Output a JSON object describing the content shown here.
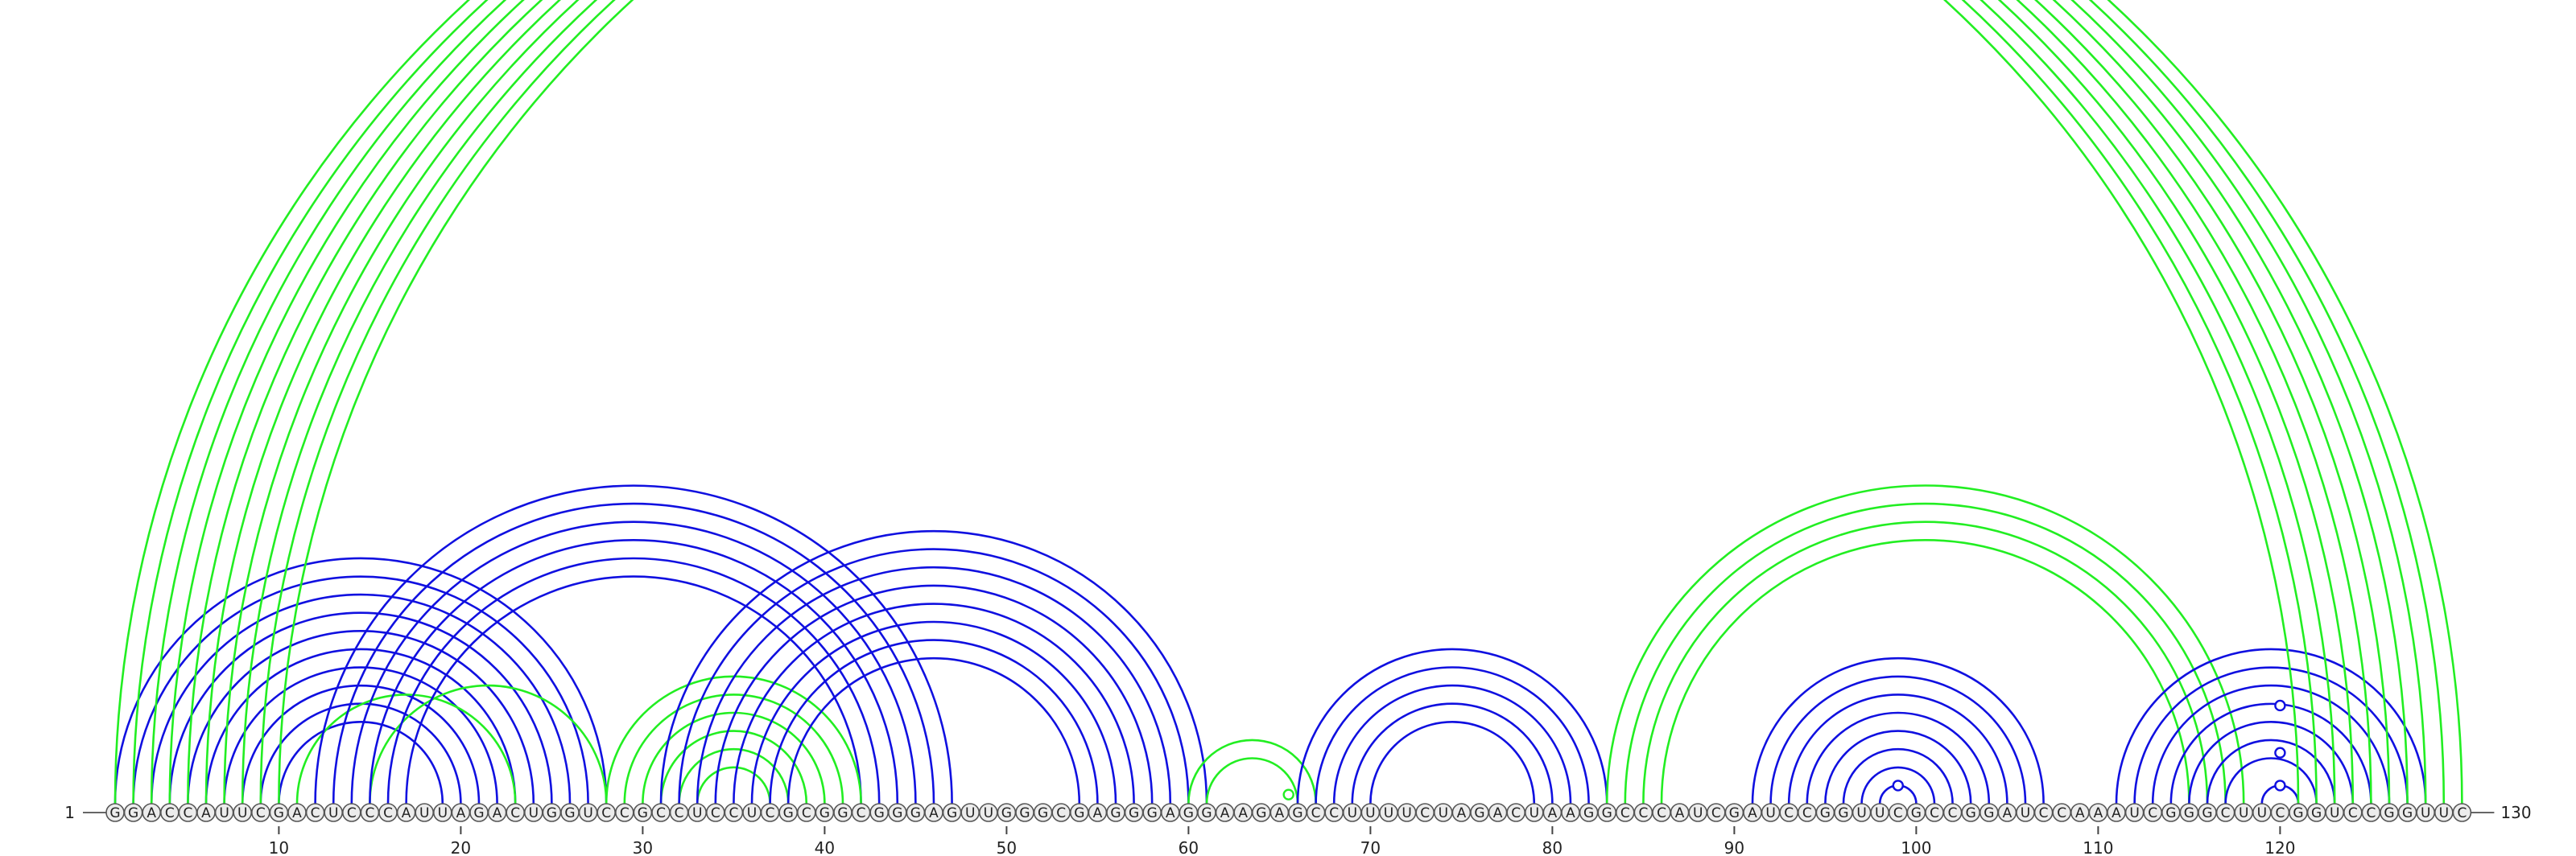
{
  "sequence": "GGACCAUUCGACUCCCAUUAGACUGGUCCGCCUCCUCGCGGCGGGAGUUGGGCGAGGGAGGAAGAGCCUUUUCUAGACUAAGGCCCAUCGAUCCGGUUCGCCGGAUCCAAAUCGGGCUUCGGUCCGGUUC",
  "start_label": "1",
  "end_label": "130",
  "ticks": [
    10,
    20,
    30,
    40,
    50,
    60,
    70,
    80,
    90,
    100,
    110,
    120
  ],
  "colors": {
    "blue": "#1010e0",
    "green": "#22ee22"
  },
  "arc_groups": [
    {
      "color": "blue",
      "pairs": [
        [
          1,
          28
        ],
        [
          2,
          27
        ],
        [
          3,
          26
        ],
        [
          4,
          25
        ],
        [
          5,
          24
        ],
        [
          6,
          23
        ],
        [
          7,
          22
        ],
        [
          8,
          21
        ],
        [
          9,
          20
        ],
        [
          10,
          19
        ]
      ]
    },
    {
      "color": "green",
      "pairs": [
        [
          11,
          23
        ],
        [
          15,
          28
        ]
      ]
    },
    {
      "color": "blue",
      "pairs": [
        [
          12,
          47
        ],
        [
          13,
          46
        ],
        [
          14,
          45
        ],
        [
          15,
          44
        ],
        [
          16,
          43
        ],
        [
          17,
          42
        ]
      ]
    },
    {
      "color": "green",
      "pairs": [
        [
          28,
          42
        ],
        [
          29,
          41
        ],
        [
          30,
          40
        ],
        [
          31,
          39
        ],
        [
          32,
          38
        ],
        [
          33,
          37
        ]
      ]
    },
    {
      "color": "blue",
      "pairs": [
        [
          31,
          61
        ],
        [
          32,
          60
        ],
        [
          33,
          59
        ],
        [
          34,
          58
        ],
        [
          35,
          57
        ],
        [
          36,
          56
        ],
        [
          37,
          55
        ],
        [
          38,
          54
        ]
      ]
    },
    {
      "color": "green",
      "pairs": [
        [
          60,
          67
        ],
        [
          61,
          66
        ]
      ]
    },
    {
      "color": "blue",
      "pairs": [
        [
          66,
          83
        ],
        [
          67,
          82
        ],
        [
          68,
          81
        ],
        [
          69,
          80
        ],
        [
          70,
          79
        ]
      ]
    },
    {
      "color": "green",
      "pairs": [
        [
          83,
          118
        ],
        [
          84,
          117
        ],
        [
          85,
          116
        ],
        [
          86,
          115
        ]
      ]
    },
    {
      "color": "blue",
      "pairs": [
        [
          91,
          107
        ],
        [
          92,
          106
        ],
        [
          93,
          105
        ],
        [
          94,
          104
        ],
        [
          95,
          103
        ],
        [
          96,
          102
        ],
        [
          97,
          101
        ],
        [
          98,
          100
        ]
      ]
    },
    {
      "color": "blue",
      "pairs": [
        [
          111,
          128
        ],
        [
          112,
          127
        ],
        [
          113,
          126
        ],
        [
          114,
          125
        ],
        [
          115,
          124
        ],
        [
          116,
          123
        ],
        [
          117,
          122
        ],
        [
          119,
          121
        ]
      ]
    },
    {
      "color": "green",
      "pairs": [
        [
          1,
          121
        ],
        [
          2,
          122
        ],
        [
          3,
          123
        ],
        [
          4,
          124
        ],
        [
          5,
          125
        ],
        [
          6,
          126
        ],
        [
          7,
          127
        ],
        [
          8,
          128
        ],
        [
          9,
          129
        ],
        [
          10,
          130
        ]
      ]
    }
  ],
  "markers": [
    {
      "between": [
        65,
        66
      ],
      "color": "green"
    },
    {
      "between": [
        98,
        100
      ],
      "color": "blue"
    },
    {
      "between": [
        119,
        121
      ],
      "color": "blue"
    },
    {
      "between": [
        119,
        121
      ],
      "color": "blue",
      "level": 2
    },
    {
      "between": [
        119,
        121
      ],
      "color": "blue",
      "level": 3
    }
  ]
}
